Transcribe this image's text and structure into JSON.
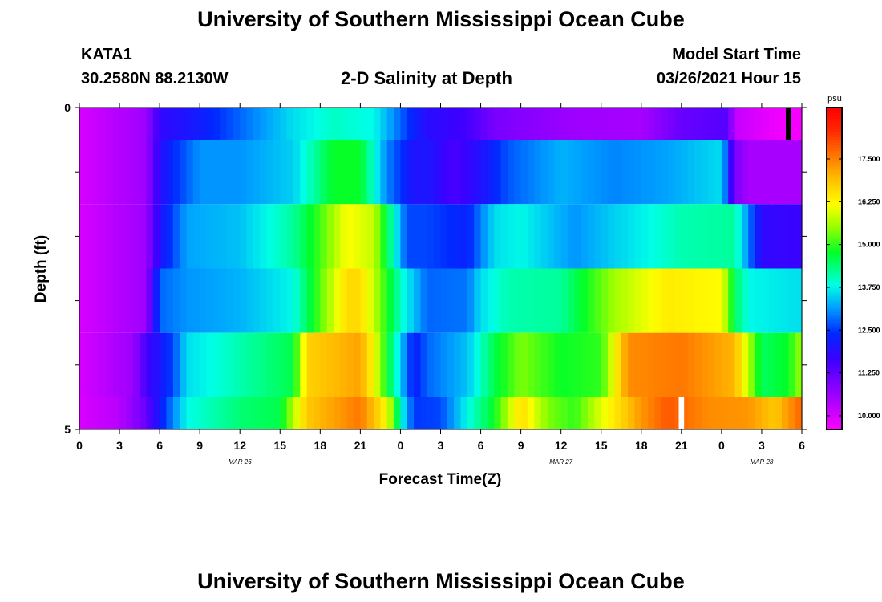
{
  "header": {
    "title": "University of Southern Mississippi Ocean Cube",
    "station": "KATA1",
    "coords": "30.2580N 88.2130W",
    "plot_title": "2-D Salinity at Depth",
    "start_label": "Model Start Time",
    "start_value": "03/26/2021 Hour 15",
    "footer_title": "University of Southern Mississippi Ocean Cube"
  },
  "chart_data": {
    "type": "heatmap",
    "title": "2-D Salinity at Depth",
    "xlabel": "Forecast Time(Z)",
    "ylabel": "Depth (ft)",
    "x_range_hours": [
      0,
      54
    ],
    "y_range_ft": [
      0,
      5
    ],
    "x_tick_labels": [
      "0",
      "3",
      "6",
      "9",
      "12",
      "15",
      "18",
      "21",
      "0",
      "3",
      "6",
      "9",
      "12",
      "15",
      "18",
      "21",
      "0",
      "3",
      "6"
    ],
    "y_tick_labels": [
      {
        "depth": 0,
        "label": "0"
      },
      {
        "depth": 5,
        "label": "5"
      }
    ],
    "date_labels": [
      {
        "hour": 12,
        "label": "MAR 26"
      },
      {
        "hour": 36,
        "label": "MAR 27"
      },
      {
        "hour": 51,
        "label": "MAR 28"
      }
    ],
    "colorbar": {
      "unit": "psu",
      "range": [
        9.6,
        19.0
      ],
      "ticks": [
        10.0,
        11.25,
        12.5,
        13.75,
        15.0,
        16.25,
        17.5
      ],
      "tick_labels": [
        "10.000",
        "11.250",
        "12.500",
        "13.750",
        "15.000",
        "16.250",
        "17.500"
      ]
    },
    "depth_bands": [
      0.0,
      0.5,
      1.5,
      2.5,
      3.5,
      4.5,
      5.0
    ],
    "salinity_keyframes": [
      [
        [
          0,
          10.0
        ],
        [
          5,
          10.6
        ],
        [
          6,
          11.8
        ],
        [
          9,
          12.2
        ],
        [
          12,
          12.8
        ],
        [
          16,
          13.6
        ],
        [
          19,
          14.0
        ],
        [
          22,
          13.8
        ],
        [
          24,
          12.8
        ],
        [
          25,
          12.3
        ],
        [
          26,
          11.9
        ],
        [
          29,
          11.6
        ],
        [
          31,
          11.0
        ],
        [
          37,
          10.6
        ],
        [
          42,
          10.5
        ],
        [
          45,
          11.2
        ],
        [
          48.5,
          11.4
        ],
        [
          49,
          10.2
        ],
        [
          51,
          9.9
        ],
        [
          52.8,
          9.7
        ],
        [
          53.2,
          9.7
        ],
        [
          54,
          9.7
        ]
      ],
      [
        [
          0,
          10.0
        ],
        [
          5,
          10.6
        ],
        [
          6,
          11.9
        ],
        [
          7,
          12.4
        ],
        [
          9,
          13.1
        ],
        [
          12,
          13.1
        ],
        [
          16,
          13.5
        ],
        [
          19,
          14.8
        ],
        [
          21,
          14.8
        ],
        [
          23,
          13.0
        ],
        [
          25,
          12.0
        ],
        [
          26,
          12.1
        ],
        [
          28,
          11.5
        ],
        [
          30,
          12.0
        ],
        [
          32,
          12.7
        ],
        [
          36,
          13.3
        ],
        [
          40,
          13.0
        ],
        [
          44,
          13.2
        ],
        [
          48,
          13.6
        ],
        [
          49,
          11.0
        ],
        [
          50,
          10.5
        ],
        [
          54,
          10.5
        ]
      ],
      [
        [
          0,
          10.0
        ],
        [
          5,
          10.6
        ],
        [
          6,
          12.0
        ],
        [
          8,
          13.2
        ],
        [
          12,
          13.4
        ],
        [
          16,
          14.2
        ],
        [
          18,
          15.1
        ],
        [
          20,
          16.2
        ],
        [
          22,
          15.8
        ],
        [
          23,
          14.6
        ],
        [
          24.5,
          12.6
        ],
        [
          26,
          12.6
        ],
        [
          29,
          12.3
        ],
        [
          31,
          13.6
        ],
        [
          33,
          13.8
        ],
        [
          37,
          13.1
        ],
        [
          40,
          13.5
        ],
        [
          45,
          14.1
        ],
        [
          49,
          14.2
        ],
        [
          50,
          13.0
        ],
        [
          51,
          11.8
        ],
        [
          54,
          11.7
        ]
      ],
      [
        [
          0,
          10.0
        ],
        [
          5,
          10.6
        ],
        [
          6,
          12.8
        ],
        [
          8,
          13.1
        ],
        [
          12,
          13.3
        ],
        [
          16,
          13.8
        ],
        [
          18,
          15.2
        ],
        [
          20,
          16.6
        ],
        [
          21,
          16.6
        ],
        [
          22,
          15.8
        ],
        [
          24,
          14.0
        ],
        [
          26,
          12.8
        ],
        [
          29,
          12.9
        ],
        [
          30,
          13.6
        ],
        [
          32,
          14.1
        ],
        [
          36,
          14.2
        ],
        [
          40,
          15.6
        ],
        [
          44,
          16.4
        ],
        [
          48,
          16.2
        ],
        [
          49,
          14.5
        ],
        [
          50,
          13.8
        ],
        [
          54,
          13.6
        ]
      ],
      [
        [
          0,
          10.0
        ],
        [
          4,
          10.6
        ],
        [
          5,
          11.6
        ],
        [
          7,
          12.6
        ],
        [
          8,
          13.6
        ],
        [
          12,
          14.1
        ],
        [
          16,
          14.6
        ],
        [
          17,
          16.7
        ],
        [
          21,
          17.2
        ],
        [
          22,
          16.2
        ],
        [
          23,
          14.8
        ],
        [
          25,
          12.2
        ],
        [
          26,
          12.8
        ],
        [
          29,
          13.4
        ],
        [
          31,
          14.6
        ],
        [
          33,
          15.4
        ],
        [
          36,
          14.8
        ],
        [
          39,
          15.0
        ],
        [
          41,
          17.4
        ],
        [
          45,
          17.6
        ],
        [
          49,
          17.0
        ],
        [
          51,
          14.5
        ],
        [
          53,
          14.8
        ],
        [
          54,
          15.6
        ]
      ],
      [
        [
          0,
          10.0
        ],
        [
          3,
          10.3
        ],
        [
          5,
          11.2
        ],
        [
          6,
          12.2
        ],
        [
          8,
          13.8
        ],
        [
          12,
          14.4
        ],
        [
          15,
          14.6
        ],
        [
          17,
          16.8
        ],
        [
          21,
          17.6
        ],
        [
          23,
          16.2
        ],
        [
          24,
          14.0
        ],
        [
          25,
          12.5
        ],
        [
          27,
          12.6
        ],
        [
          29,
          13.8
        ],
        [
          31,
          14.8
        ],
        [
          33,
          16.6
        ],
        [
          35,
          15.4
        ],
        [
          37,
          15.0
        ],
        [
          39,
          16.0
        ],
        [
          42,
          17.3
        ],
        [
          44,
          17.9
        ],
        [
          47,
          17.4
        ],
        [
          50,
          17.3
        ],
        [
          52,
          16.8
        ],
        [
          54,
          17.8
        ]
      ]
    ],
    "masked_cells": [
      {
        "band": 0,
        "x_start": 52.8,
        "x_end": 53.2,
        "color": "#000000"
      },
      {
        "band": 5,
        "x_start": 44.8,
        "x_end": 45.2,
        "color": "#ffffff"
      }
    ]
  }
}
